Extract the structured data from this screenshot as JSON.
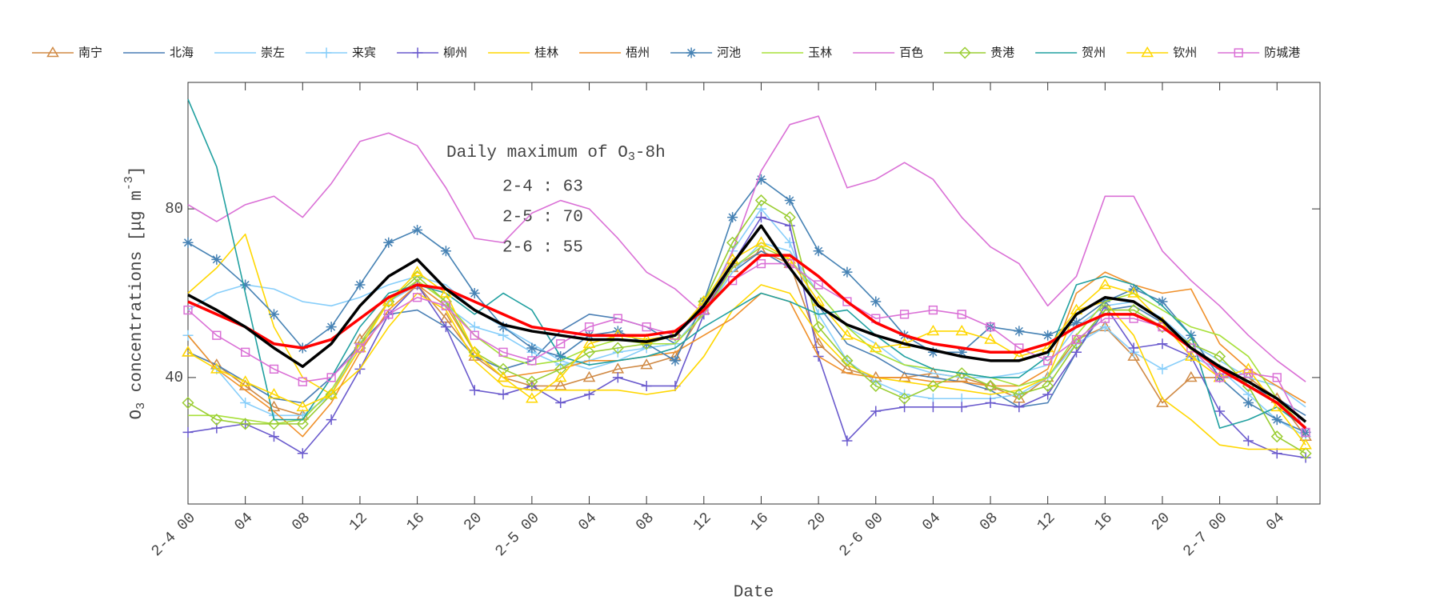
{
  "chart_data": {
    "type": "line",
    "xlabel": "Date",
    "ylabel": {
      "main": "O",
      "sub": "3",
      "rest": " concentrations [μg m",
      "sup": "-3",
      "end": "]"
    },
    "annotation": {
      "title": "Daily maximum of O",
      "title_sub": "3",
      "title_end": "-8h",
      "lines": [
        "2-4 : 63",
        "2-5 : 70",
        "2-6 : 55"
      ]
    },
    "xlim": [
      0,
      79
    ],
    "ylim": [
      10,
      110
    ],
    "xticks": [
      {
        "value": 0,
        "label": "2-4 00"
      },
      {
        "value": 4,
        "label": "04"
      },
      {
        "value": 8,
        "label": "08"
      },
      {
        "value": 12,
        "label": "12"
      },
      {
        "value": 16,
        "label": "16"
      },
      {
        "value": 20,
        "label": "20"
      },
      {
        "value": 24,
        "label": "2-5 00"
      },
      {
        "value": 28,
        "label": "04"
      },
      {
        "value": 32,
        "label": "08"
      },
      {
        "value": 36,
        "label": "12"
      },
      {
        "value": 40,
        "label": "16"
      },
      {
        "value": 44,
        "label": "20"
      },
      {
        "value": 48,
        "label": "2-6 00"
      },
      {
        "value": 52,
        "label": "04"
      },
      {
        "value": 56,
        "label": "08"
      },
      {
        "value": 60,
        "label": "12"
      },
      {
        "value": 64,
        "label": "16"
      },
      {
        "value": 68,
        "label": "20"
      },
      {
        "value": 72,
        "label": "2-7 00"
      },
      {
        "value": 76,
        "label": "04"
      }
    ],
    "yticks": [
      40,
      80
    ],
    "x": [
      0,
      2,
      4,
      6,
      8,
      10,
      12,
      14,
      16,
      18,
      20,
      22,
      24,
      26,
      28,
      30,
      32,
      34,
      36,
      38,
      40,
      42,
      44,
      46,
      48,
      50,
      52,
      54,
      56,
      58,
      60,
      62,
      64,
      66,
      68,
      70,
      72,
      74,
      76,
      78
    ],
    "series": [
      {
        "name": "南宁",
        "color": "#d08a45",
        "marker": "triangle",
        "values": [
          46,
          43,
          38,
          33,
          31,
          36,
          49,
          58,
          62,
          54,
          45,
          40,
          38,
          38,
          40,
          42,
          43,
          45,
          56,
          66,
          70,
          67,
          48,
          42,
          40,
          40,
          41,
          40,
          38,
          35,
          40,
          49,
          52,
          45,
          34,
          40,
          40,
          40,
          35,
          26
        ]
      },
      {
        "name": "北海",
        "color": "#4a7fb5",
        "values": [
          46,
          43,
          39,
          35,
          34,
          40,
          48,
          55,
          56,
          52,
          45,
          42,
          44,
          51,
          55,
          54,
          52,
          48,
          55,
          65,
          70,
          66,
          57,
          48,
          45,
          41,
          40,
          39,
          37,
          33,
          34,
          46,
          56,
          57,
          53,
          47,
          42,
          38,
          35,
          31
        ]
      },
      {
        "name": "崇左",
        "color": "#87cefa",
        "values": [
          56,
          60,
          62,
          61,
          58,
          57,
          59,
          62,
          64,
          62,
          56,
          52,
          48,
          44,
          42,
          44,
          47,
          48,
          55,
          65,
          72,
          70,
          60,
          52,
          48,
          43,
          41,
          40,
          40,
          41,
          43,
          52,
          57,
          58,
          54,
          48,
          44,
          40,
          38,
          33
        ]
      },
      {
        "name": "来宾",
        "color": "#87cefa",
        "marker": "plus",
        "values": [
          50,
          42,
          34,
          31,
          31,
          36,
          48,
          58,
          62,
          57,
          52,
          50,
          46,
          43,
          44,
          46,
          47,
          48,
          56,
          70,
          80,
          72,
          55,
          44,
          39,
          36,
          35,
          35,
          35,
          36,
          40,
          48,
          52,
          46,
          42,
          45,
          42,
          36,
          30,
          26
        ]
      },
      {
        "name": "柳州",
        "color": "#6a5acd",
        "marker": "plus",
        "values": [
          27,
          28,
          29,
          26,
          22,
          30,
          42,
          55,
          62,
          52,
          37,
          36,
          38,
          34,
          36,
          40,
          38,
          38,
          55,
          67,
          78,
          76,
          45,
          25,
          32,
          33,
          33,
          33,
          34,
          33,
          36,
          46,
          57,
          47,
          48,
          45,
          32,
          25,
          22,
          21
        ]
      },
      {
        "name": "桂林",
        "color": "#ffd700",
        "values": [
          60,
          66,
          74,
          52,
          40,
          36,
          42,
          52,
          60,
          56,
          44,
          38,
          37,
          37,
          37,
          37,
          36,
          37,
          45,
          56,
          62,
          60,
          50,
          43,
          40,
          39,
          38,
          37,
          36,
          37,
          40,
          56,
          58,
          50,
          35,
          30,
          24,
          23,
          23,
          23
        ]
      },
      {
        "name": "梧州",
        "color": "#f0902a",
        "values": [
          50,
          42,
          37,
          32,
          26,
          34,
          46,
          56,
          62,
          57,
          46,
          40,
          41,
          42,
          44,
          44,
          45,
          46,
          50,
          54,
          60,
          58,
          45,
          41,
          40,
          40,
          39,
          39,
          38,
          38,
          42,
          60,
          65,
          62,
          60,
          61,
          48,
          42,
          38,
          34
        ]
      },
      {
        "name": "河池",
        "color": "#4682b4",
        "marker": "star",
        "values": [
          72,
          68,
          62,
          55,
          47,
          52,
          62,
          72,
          75,
          70,
          60,
          52,
          47,
          45,
          50,
          51,
          48,
          44,
          58,
          78,
          87,
          82,
          70,
          65,
          58,
          50,
          46,
          46,
          52,
          51,
          50,
          53,
          58,
          61,
          58,
          50,
          40,
          34,
          30,
          27
        ]
      },
      {
        "name": "玉林",
        "color": "#a8e03a",
        "values": [
          31,
          31,
          30,
          29,
          30,
          37,
          48,
          58,
          63,
          58,
          50,
          45,
          43,
          44,
          47,
          49,
          48,
          48,
          55,
          66,
          71,
          68,
          60,
          52,
          46,
          43,
          42,
          41,
          40,
          38,
          40,
          50,
          58,
          60,
          56,
          52,
          50,
          45,
          35,
          28
        ]
      },
      {
        "name": "百色",
        "color": "#da70d6",
        "values": [
          81,
          77,
          81,
          83,
          78,
          86,
          96,
          98,
          95,
          85,
          73,
          72,
          79,
          82,
          80,
          73,
          65,
          61,
          55,
          70,
          89,
          100,
          102,
          85,
          87,
          91,
          87,
          78,
          71,
          67,
          57,
          64,
          83,
          83,
          70,
          63,
          57,
          50,
          44,
          39
        ]
      },
      {
        "name": "贵港",
        "color": "#9acd32",
        "marker": "diamond",
        "values": [
          34,
          30,
          29,
          29,
          29,
          36,
          47,
          58,
          64,
          58,
          46,
          42,
          39,
          42,
          46,
          47,
          48,
          50,
          58,
          72,
          82,
          78,
          52,
          44,
          38,
          35,
          38,
          41,
          38,
          36,
          38,
          48,
          56,
          56,
          52,
          48,
          45,
          38,
          26,
          22
        ]
      },
      {
        "name": "贺州",
        "color": "#20a0a0",
        "values": [
          106,
          90,
          60,
          30,
          30,
          40,
          52,
          60,
          62,
          60,
          55,
          60,
          56,
          45,
          43,
          44,
          45,
          47,
          52,
          56,
          60,
          58,
          55,
          56,
          50,
          45,
          42,
          41,
          40,
          40,
          45,
          62,
          64,
          62,
          57,
          50,
          28,
          30,
          33,
          28
        ]
      },
      {
        "name": "钦州",
        "color": "#ffd700",
        "marker": "triangle",
        "values": [
          46,
          42,
          39,
          36,
          33,
          36,
          47,
          58,
          65,
          60,
          46,
          40,
          35,
          40,
          48,
          50,
          49,
          50,
          58,
          68,
          72,
          68,
          58,
          50,
          47,
          48,
          51,
          51,
          49,
          45,
          47,
          56,
          62,
          60,
          53,
          45,
          40,
          42,
          33,
          24
        ]
      },
      {
        "name": "防城港",
        "color": "#da70d6",
        "marker": "square",
        "values": [
          56,
          50,
          46,
          42,
          39,
          40,
          47,
          55,
          59,
          57,
          50,
          46,
          44,
          48,
          52,
          54,
          52,
          50,
          56,
          63,
          67,
          67,
          62,
          58,
          54,
          55,
          56,
          55,
          52,
          47,
          44,
          49,
          54,
          54,
          52,
          47,
          40,
          41,
          40,
          27
        ]
      },
      {
        "color": "#ff0000",
        "width": 3.5,
        "values": [
          58,
          55,
          52,
          48,
          47,
          49,
          54,
          59,
          62,
          61,
          58,
          55,
          52,
          51,
          50,
          50,
          50,
          51,
          56,
          63,
          69,
          69,
          64,
          58,
          53,
          50,
          48,
          47,
          46,
          46,
          48,
          52,
          55,
          55,
          52,
          47,
          42,
          38,
          34,
          28
        ]
      },
      {
        "color": "#000000",
        "width": 3.5,
        "values": [
          59.6,
          56,
          52,
          47,
          42.6,
          48,
          57,
          64,
          68,
          61,
          56,
          52.5,
          51,
          50,
          49,
          49,
          48.5,
          50,
          57,
          67,
          76,
          66,
          57,
          52.5,
          50,
          48,
          46.5,
          45,
          44,
          44,
          46,
          55,
          59,
          58,
          53.6,
          47,
          42.6,
          39,
          35,
          29.5
        ]
      }
    ]
  }
}
